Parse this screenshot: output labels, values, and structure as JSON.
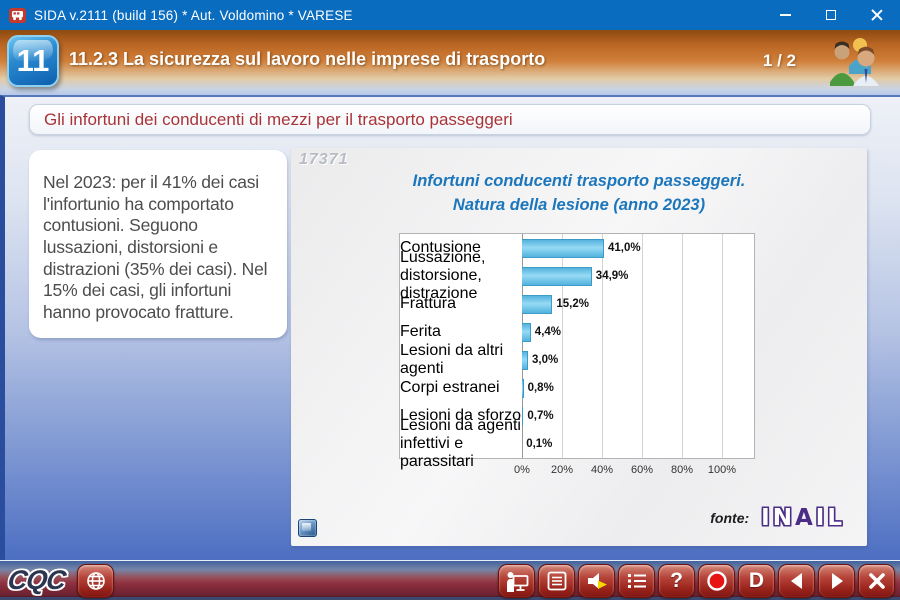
{
  "titlebar": {
    "title": "SIDA v.2111 (build 156) * Aut. Voldomino * VARESE",
    "app_icon": "bus-icon"
  },
  "header": {
    "badge": "11",
    "title": "11.2.3 La sicurezza sul lavoro nelle imprese di trasporto",
    "page_indicator": "1 / 2"
  },
  "content": {
    "subtitle": "Gli infortuni dei conducenti di mezzi per il trasporto passeggeri",
    "body_text": "Nel 2023: per il 41% dei casi l'infortunio ha comportato contusioni. Seguono lussazioni, distorsioni e distrazioni (35% dei casi). Nel 15% dei casi, gli infortuni hanno provocato fratture.",
    "watermark": "17371"
  },
  "chart_data": {
    "type": "bar",
    "orientation": "horizontal",
    "title": "Infortuni conducenti trasporto passeggeri.",
    "subtitle": "Natura della lesione (anno 2023)",
    "categories": [
      "Contusione",
      "Lussazione,\ndistorsione, distrazione",
      "Frattura",
      "Ferita",
      "Lesioni da altri agenti",
      "Corpi estranei",
      "Lesioni da sforzo",
      "Lesioni da agenti\ninfettivi e parassitari"
    ],
    "values": [
      41.0,
      34.9,
      15.2,
      4.4,
      3.0,
      0.8,
      0.7,
      0.1
    ],
    "value_labels": [
      "41,0%",
      "34,9%",
      "15,2%",
      "4,4%",
      "3,0%",
      "0,8%",
      "0,7%",
      "0,1%"
    ],
    "x_ticks": [
      "0%",
      "20%",
      "40%",
      "60%",
      "80%",
      "100%"
    ],
    "xlim": [
      0,
      100
    ],
    "grid": true,
    "legend": false,
    "bar_color": "#58b8e4",
    "title_color": "#1c76bb"
  },
  "source": {
    "label": "fonte:",
    "logo_part1": "IN",
    "logo_part2": "A",
    "logo_part3": "IL"
  },
  "toolbar": {
    "logo": "CQC",
    "help_glyph": "?",
    "dictionary_glyph": "D"
  }
}
